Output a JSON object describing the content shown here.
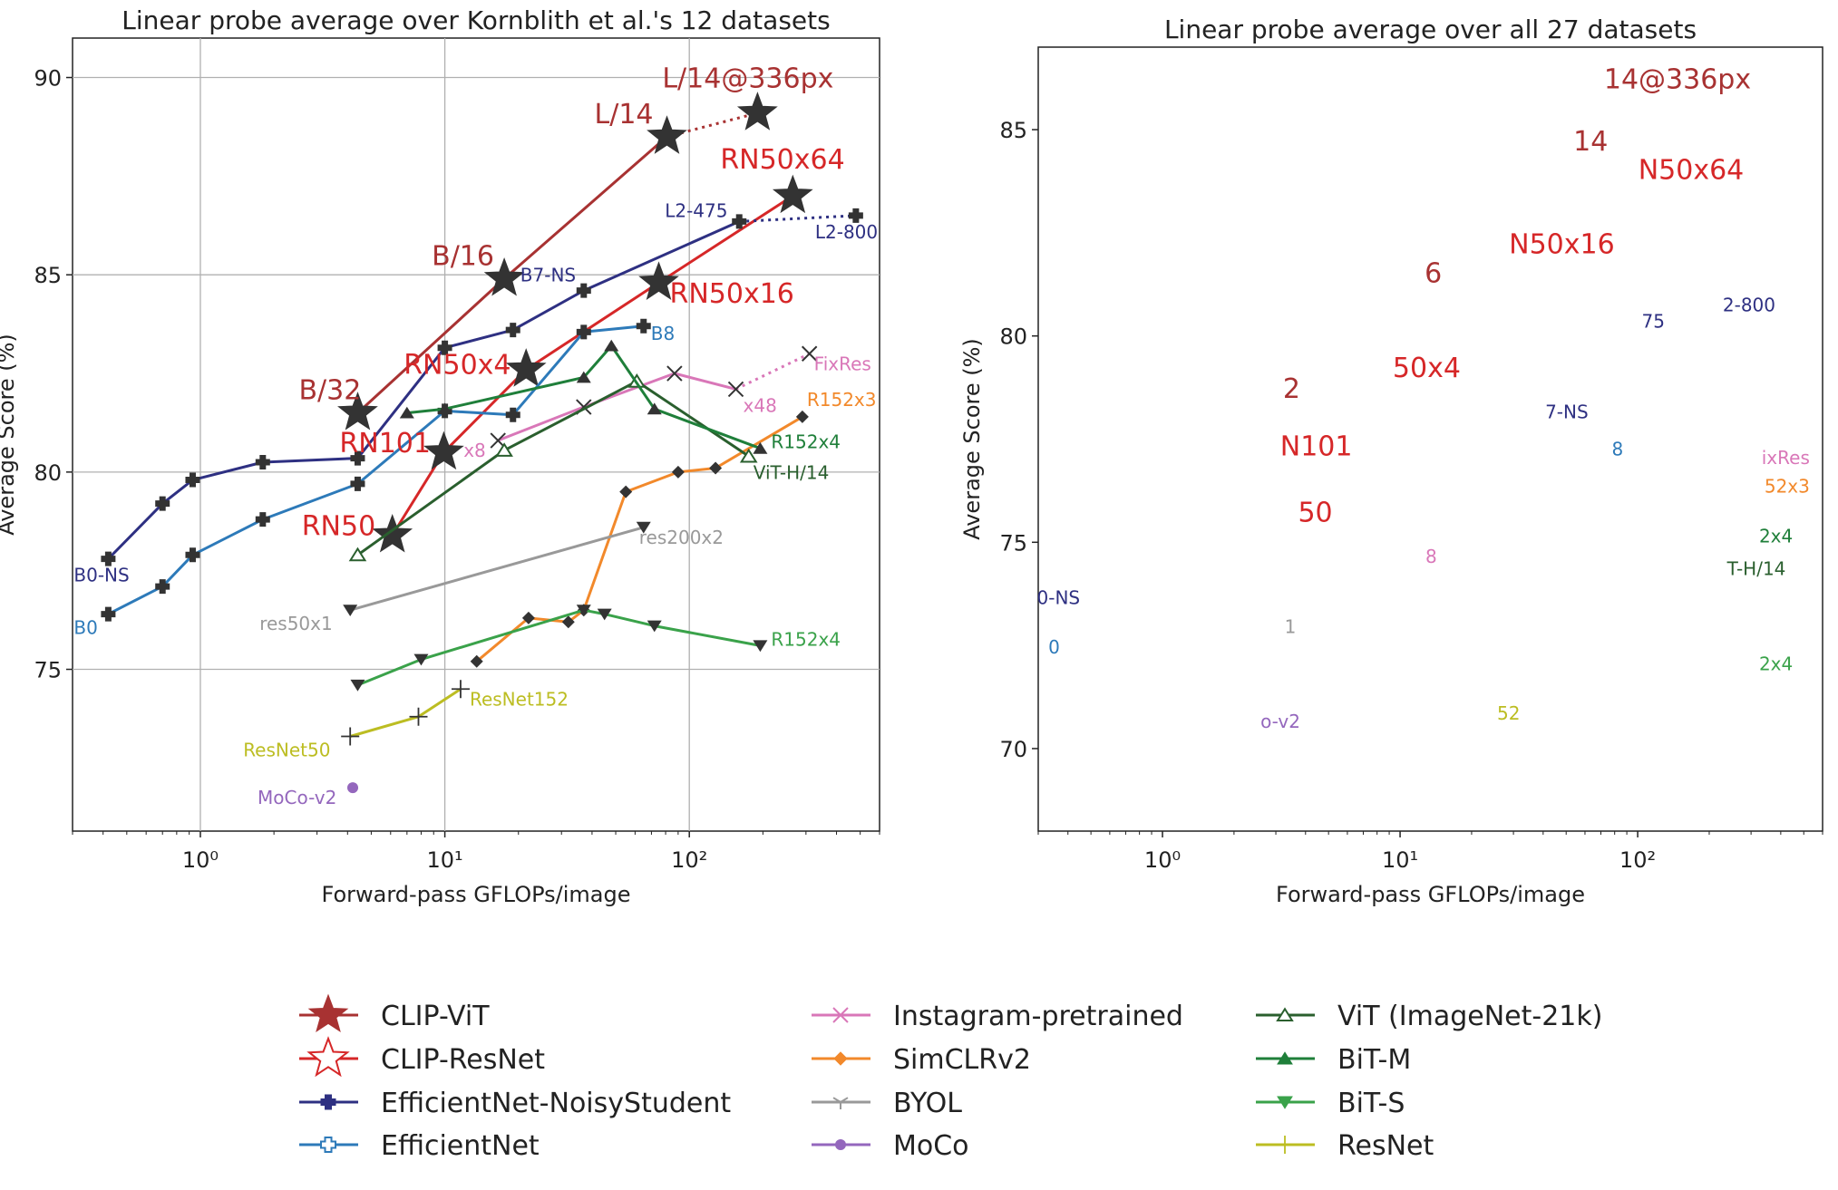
{
  "chart_data": [
    {
      "type": "line",
      "title": "Linear probe average over Kornblith et al.'s 12 datasets",
      "xlabel": "Forward-pass GFLOPs/image",
      "ylabel": "Average Score (%)",
      "xscale": "log",
      "xlim": [
        0.3,
        600
      ],
      "ylim": [
        70.9,
        91
      ],
      "xticks": [
        {
          "v": 1,
          "label": "10⁰"
        },
        {
          "v": 10,
          "label": "10¹"
        },
        {
          "v": 100,
          "label": "10²"
        }
      ],
      "yticks": [
        75,
        80,
        85,
        90
      ],
      "grid": true,
      "series": [
        {
          "name": "CLIP-ViT",
          "color": "#a83232",
          "marker": "star-filled",
          "x": [
            4.4,
            17.5,
            81
          ],
          "y": [
            81.5,
            84.9,
            88.5
          ],
          "extension": {
            "x": [
              81,
              190
            ],
            "y": [
              88.5,
              89.1
            ]
          },
          "labels": [
            {
              "text": "B/32",
              "i": 0,
              "dx": -65,
              "dy": -15,
              "size": 30
            },
            {
              "text": "B/16",
              "i": 1,
              "dx": -80,
              "dy": -15,
              "size": 30
            },
            {
              "text": "L/14",
              "i": 2,
              "dx": -80,
              "dy": -15,
              "size": 30
            },
            {
              "text": "L/14@336px",
              "ext": 1,
              "dx": -105,
              "dy": -28,
              "size": 30
            }
          ]
        },
        {
          "name": "CLIP-ResNet",
          "color": "#d62728",
          "marker": "star-filled",
          "x": [
            6.1,
            9.9,
            21.5,
            75,
            265
          ],
          "y": [
            78.4,
            80.5,
            82.6,
            84.8,
            87.0
          ],
          "labels": [
            {
              "text": "RN50",
              "i": 0,
              "dx": -100,
              "dy": 0,
              "size": 30
            },
            {
              "text": "RN101",
              "i": 1,
              "dx": -115,
              "dy": 0,
              "size": 30
            },
            {
              "text": "RN50x4",
              "i": 2,
              "dx": -135,
              "dy": 5,
              "size": 30
            },
            {
              "text": "RN50x16",
              "i": 3,
              "dx": 12,
              "dy": 22,
              "size": 30
            },
            {
              "text": "RN50x64",
              "i": 4,
              "dx": -80,
              "dy": -30,
              "size": 30
            }
          ]
        },
        {
          "name": "EfficientNet-NoisyStudent",
          "color": "#2e3082",
          "marker": "plus-bold",
          "x": [
            0.42,
            0.7,
            0.93,
            1.8,
            4.4,
            10,
            19,
            37,
            160
          ],
          "y": [
            77.8,
            79.2,
            79.8,
            80.25,
            80.35,
            83.15,
            83.6,
            84.6,
            86.35
          ],
          "extension": {
            "x": [
              160,
              480
            ],
            "y": [
              86.35,
              86.5
            ]
          },
          "labels": [
            {
              "text": "B0-NS",
              "i": 0,
              "dx": -38,
              "dy": 25,
              "size": 20
            },
            {
              "text": "B7-NS",
              "i": 7,
              "dx": -70,
              "dy": -10,
              "size": 20
            },
            {
              "text": "L2-475",
              "i": 8,
              "dx": -82,
              "dy": -5,
              "size": 20
            },
            {
              "text": "L2-800",
              "ext": 1,
              "dx": -45,
              "dy": 25,
              "size": 20
            }
          ]
        },
        {
          "name": "EfficientNet",
          "color": "#2d7ab9",
          "marker": "plus-bold",
          "x": [
            0.42,
            0.7,
            0.93,
            1.8,
            4.4,
            10,
            19,
            37,
            65
          ],
          "y": [
            76.4,
            77.1,
            77.9,
            78.8,
            79.7,
            81.55,
            81.45,
            83.55,
            83.7
          ],
          "labels": [
            {
              "text": "B0",
              "i": 0,
              "dx": -38,
              "dy": 22,
              "size": 20
            },
            {
              "text": "B8",
              "i": 8,
              "dx": 8,
              "dy": 15,
              "size": 20
            }
          ]
        },
        {
          "name": "Instagram-pretrained",
          "color": "#d977b8",
          "marker": "x",
          "x": [
            16.5,
            37,
            87,
            155
          ],
          "y": [
            80.8,
            81.65,
            82.5,
            82.1
          ],
          "extension": {
            "x": [
              155,
              310
            ],
            "y": [
              82.1,
              83.0
            ]
          },
          "labels": [
            {
              "text": "x8",
              "i": 0,
              "dx": -38,
              "dy": 18,
              "size": 20
            },
            {
              "text": "x48",
              "i": 3,
              "dx": 8,
              "dy": 25,
              "size": 20
            },
            {
              "text": "FixRes",
              "ext": 1,
              "dx": 5,
              "dy": 18,
              "size": 20
            }
          ]
        },
        {
          "name": "SimCLRv2",
          "color": "#f2892b",
          "marker": "diamond",
          "x": [
            13.5,
            22,
            32,
            37,
            55,
            90,
            128,
            290
          ],
          "y": [
            75.2,
            76.3,
            76.2,
            76.5,
            79.5,
            80.0,
            80.1,
            81.4
          ],
          "labels": [
            {
              "text": "R152x3",
              "i": 7,
              "dx": 5,
              "dy": -12,
              "size": 20
            }
          ]
        },
        {
          "name": "BYOL",
          "color": "#999999",
          "marker": "tri-down",
          "x": [
            4.1,
            65
          ],
          "y": [
            76.5,
            78.6
          ],
          "labels": [
            {
              "text": "res50x1",
              "i": 0,
              "dx": -100,
              "dy": 22,
              "size": 20
            },
            {
              "text": "res200x2",
              "i": 1,
              "dx": -5,
              "dy": 18,
              "size": 20
            }
          ]
        },
        {
          "name": "MoCo",
          "color": "#9467bd",
          "marker": "dot",
          "x": [
            4.2
          ],
          "y": [
            72.0
          ],
          "labels": [
            {
              "text": "MoCo-v2",
              "i": 0,
              "dx": -105,
              "dy": 18,
              "size": 20
            }
          ]
        },
        {
          "name": "ViT (ImageNet-21k)",
          "color": "#2a5f2e",
          "marker": "tri-up-open",
          "x": [
            4.4,
            17.5,
            61,
            175
          ],
          "y": [
            77.9,
            80.55,
            82.3,
            80.4
          ],
          "labels": [
            {
              "text": "ViT-H/14",
              "i": 3,
              "dx": 5,
              "dy": 25,
              "size": 20
            }
          ]
        },
        {
          "name": "BiT-M",
          "color": "#1f7f3a",
          "marker": "tri-up",
          "x": [
            7.0,
            10,
            37,
            48,
            72,
            195
          ],
          "y": [
            81.5,
            81.6,
            82.4,
            83.2,
            81.6,
            80.6
          ],
          "labels": [
            {
              "text": "R152x4",
              "i": 5,
              "dx": 12,
              "dy": 0,
              "size": 20
            }
          ]
        },
        {
          "name": "BiT-S",
          "color": "#3aa24a",
          "marker": "tri-down",
          "x": [
            4.4,
            8.0,
            37,
            45,
            72,
            195
          ],
          "y": [
            74.6,
            75.25,
            76.5,
            76.4,
            76.1,
            75.6
          ],
          "labels": [
            {
              "text": "R152x4",
              "i": 5,
              "dx": 12,
              "dy": 0,
              "size": 20
            }
          ]
        },
        {
          "name": "ResNet",
          "color": "#bcbd22",
          "marker": "plus-thin",
          "x": [
            4.1,
            7.8,
            11.6
          ],
          "y": [
            73.3,
            73.8,
            74.5
          ],
          "labels": [
            {
              "text": "ResNet50",
              "i": 0,
              "dx": -118,
              "dy": 22,
              "size": 20
            },
            {
              "text": "ResNet152",
              "i": 2,
              "dx": 10,
              "dy": 18,
              "size": 20
            }
          ]
        }
      ]
    },
    {
      "type": "line",
      "title": "Linear probe average over all 27 datasets",
      "xlabel": "Forward-pass GFLOPs/image",
      "ylabel": "Average Score (%)",
      "xscale": "log",
      "xlim": [
        0.3,
        600
      ],
      "ylim": [
        68,
        87
      ],
      "xticks": [
        {
          "v": 1,
          "label": "10⁰"
        },
        {
          "v": 10,
          "label": "10¹"
        },
        {
          "v": 100,
          "label": "10²"
        }
      ],
      "yticks": [
        70,
        75,
        80,
        85
      ],
      "grid": false,
      "text_labels": [
        {
          "text": "14@336px",
          "x": 300,
          "y": 86.0,
          "color": "#a83232",
          "size": 30
        },
        {
          "text": "14",
          "x": 75,
          "y": 84.5,
          "color": "#a83232",
          "size": 30
        },
        {
          "text": "N50x64",
          "x": 280,
          "y": 83.8,
          "color": "#d62728",
          "size": 30
        },
        {
          "text": "N50x16",
          "x": 80,
          "y": 82.0,
          "color": "#d62728",
          "size": 30
        },
        {
          "text": "6",
          "x": 15,
          "y": 81.3,
          "color": "#a83232",
          "size": 30
        },
        {
          "text": "2-800",
          "x": 380,
          "y": 80.6,
          "color": "#2e3082",
          "size": 20
        },
        {
          "text": "75",
          "x": 130,
          "y": 80.2,
          "color": "#2e3082",
          "size": 20
        },
        {
          "text": "50x4",
          "x": 18,
          "y": 79.0,
          "color": "#d62728",
          "size": 30
        },
        {
          "text": "2",
          "x": 3.8,
          "y": 78.5,
          "color": "#a83232",
          "size": 30
        },
        {
          "text": "7-NS",
          "x": 62,
          "y": 78.0,
          "color": "#2e3082",
          "size": 20
        },
        {
          "text": "N101",
          "x": 6.3,
          "y": 77.1,
          "color": "#d62728",
          "size": 30
        },
        {
          "text": "8",
          "x": 87,
          "y": 77.1,
          "color": "#2d7ab9",
          "size": 20
        },
        {
          "text": "ixRes",
          "x": 530,
          "y": 76.9,
          "color": "#d977b8",
          "size": 20
        },
        {
          "text": "52x3",
          "x": 530,
          "y": 76.2,
          "color": "#f2892b",
          "size": 20
        },
        {
          "text": "50",
          "x": 5.2,
          "y": 75.5,
          "color": "#d62728",
          "size": 30
        },
        {
          "text": "2x4",
          "x": 450,
          "y": 75.0,
          "color": "#1f7f3a",
          "size": 20
        },
        {
          "text": "8",
          "x": 14.3,
          "y": 74.5,
          "color": "#d977b8",
          "size": 20
        },
        {
          "text": "T-H/14",
          "x": 420,
          "y": 74.2,
          "color": "#2a5f2e",
          "size": 20
        },
        {
          "text": "0-NS",
          "x": 0.45,
          "y": 73.5,
          "color": "#2e3082",
          "size": 20
        },
        {
          "text": "1",
          "x": 3.65,
          "y": 72.8,
          "color": "#999999",
          "size": 20
        },
        {
          "text": "0",
          "x": 0.37,
          "y": 72.3,
          "color": "#2d7ab9",
          "size": 20
        },
        {
          "text": "2x4",
          "x": 450,
          "y": 71.9,
          "color": "#3aa24a",
          "size": 20
        },
        {
          "text": "52",
          "x": 32,
          "y": 70.7,
          "color": "#bcbd22",
          "size": 20
        },
        {
          "text": "o-v2",
          "x": 3.8,
          "y": 70.5,
          "color": "#9467bd",
          "size": 20
        }
      ]
    }
  ]
}
